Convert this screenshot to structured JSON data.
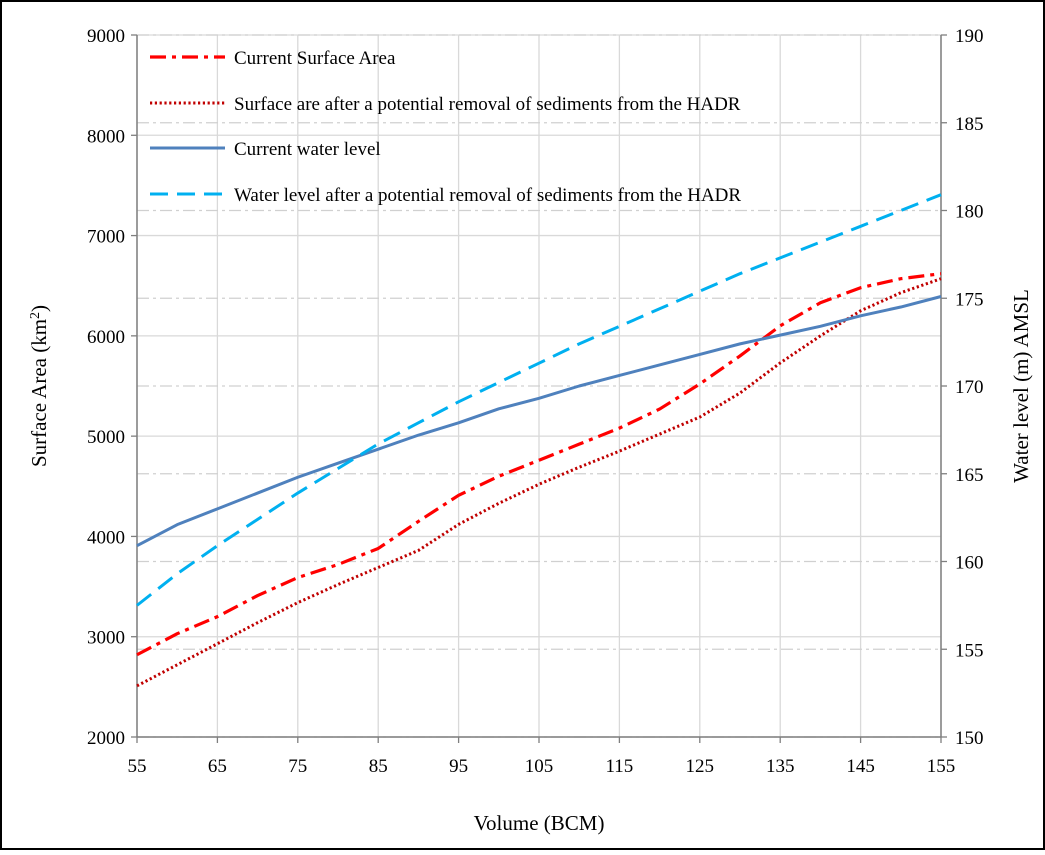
{
  "chart_data": {
    "type": "line",
    "xlabel": "Volume (BCM)",
    "ylabel_left": "Surface Area (km²)",
    "ylabel_left_parts": [
      "Surface Area (km",
      "2",
      ")"
    ],
    "ylabel_right": "Water level (m) AMSL",
    "xlim": [
      55,
      155
    ],
    "ylim_left": [
      2000,
      9000
    ],
    "ylim_right": [
      150,
      190
    ],
    "x_ticks": [
      "55",
      "65",
      "75",
      "85",
      "95",
      "105",
      "115",
      "125",
      "135",
      "145",
      "155"
    ],
    "y_left_ticks": [
      "2000",
      "3000",
      "4000",
      "5000",
      "6000",
      "7000",
      "8000",
      "9000"
    ],
    "y_right_ticks": [
      "150",
      "155",
      "160",
      "165",
      "170",
      "175",
      "180",
      "185",
      "190"
    ],
    "grid": true,
    "legend_position": "top-left",
    "series": [
      {
        "name": "Current Surface Area",
        "axis": "left",
        "color": "#ff0000",
        "style": "dash-dot",
        "x": [
          55,
          60,
          65,
          70,
          75,
          80,
          85,
          90,
          95,
          100,
          105,
          110,
          115,
          120,
          125,
          130,
          135,
          140,
          145,
          150,
          155
        ],
        "y": [
          2820,
          3030,
          3200,
          3410,
          3590,
          3720,
          3880,
          4150,
          4410,
          4600,
          4760,
          4920,
          5080,
          5270,
          5520,
          5800,
          6100,
          6330,
          6480,
          6570,
          6620
        ]
      },
      {
        "name": "Surface are after a potential removal of sediments from the HADR",
        "axis": "left",
        "color": "#c00000",
        "style": "dotted",
        "x": [
          55,
          60,
          65,
          70,
          75,
          80,
          85,
          90,
          95,
          100,
          105,
          110,
          115,
          120,
          125,
          130,
          135,
          140,
          145,
          150,
          155
        ],
        "y": [
          2510,
          2720,
          2930,
          3140,
          3340,
          3520,
          3690,
          3860,
          4120,
          4330,
          4520,
          4690,
          4850,
          5020,
          5190,
          5430,
          5730,
          6000,
          6250,
          6430,
          6570
        ]
      },
      {
        "name": "Current water level",
        "axis": "right",
        "color": "#4f81bd",
        "style": "solid",
        "x": [
          55,
          60,
          65,
          70,
          75,
          80,
          85,
          90,
          95,
          100,
          105,
          110,
          115,
          120,
          125,
          130,
          135,
          140,
          145,
          150,
          155
        ],
        "y": [
          160.9,
          162.1,
          163.0,
          163.9,
          164.8,
          165.6,
          166.4,
          167.2,
          167.9,
          168.7,
          169.3,
          170.0,
          170.6,
          171.2,
          171.8,
          172.4,
          172.9,
          173.4,
          174.0,
          174.5,
          175.1
        ]
      },
      {
        "name": "Water level after a potential removal of sediments from the HADR",
        "axis": "right",
        "color": "#00b0f0",
        "style": "dashed",
        "x": [
          55,
          60,
          65,
          70,
          75,
          80,
          85,
          90,
          95,
          100,
          105,
          110,
          115,
          120,
          125,
          130,
          135,
          140,
          145,
          150,
          155
        ],
        "y": [
          157.5,
          159.3,
          160.9,
          162.4,
          163.9,
          165.3,
          166.7,
          167.9,
          169.1,
          170.2,
          171.3,
          172.4,
          173.4,
          174.4,
          175.4,
          176.4,
          177.3,
          178.2,
          179.1,
          180.0,
          180.9
        ]
      }
    ]
  }
}
